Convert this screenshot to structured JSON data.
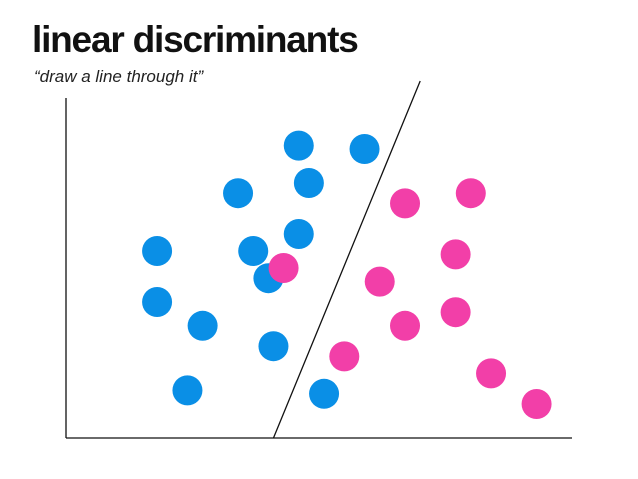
{
  "slide": {
    "title": "linear discriminants",
    "subtitle": "“draw a line through it”"
  },
  "colors": {
    "class_a": "#0a8fe6",
    "class_b": "#f23fa8",
    "axis": "#111111",
    "separator": "#111111"
  },
  "chart_data": {
    "type": "scatter",
    "title": "",
    "xlabel": "",
    "ylabel": "",
    "xlim": [
      0,
      100
    ],
    "ylim": [
      0,
      100
    ],
    "grid": false,
    "series": [
      {
        "color_key": "class_a",
        "points": [
          [
            46,
            86
          ],
          [
            59,
            85
          ],
          [
            48,
            75
          ],
          [
            34,
            72
          ],
          [
            46,
            60
          ],
          [
            37,
            55
          ],
          [
            18,
            55
          ],
          [
            40,
            47
          ],
          [
            18,
            40
          ],
          [
            27,
            33
          ],
          [
            41,
            27
          ],
          [
            51,
            13
          ],
          [
            24,
            14
          ]
        ]
      },
      {
        "color_key": "class_b",
        "points": [
          [
            80,
            72
          ],
          [
            67,
            69
          ],
          [
            77,
            54
          ],
          [
            43,
            50
          ],
          [
            62,
            46
          ],
          [
            77,
            37
          ],
          [
            67,
            33
          ],
          [
            55,
            24
          ],
          [
            84,
            19
          ],
          [
            93,
            10
          ]
        ]
      }
    ],
    "separator_line": {
      "x1": 41,
      "y1": 0,
      "x2": 70,
      "y2": 105
    }
  }
}
